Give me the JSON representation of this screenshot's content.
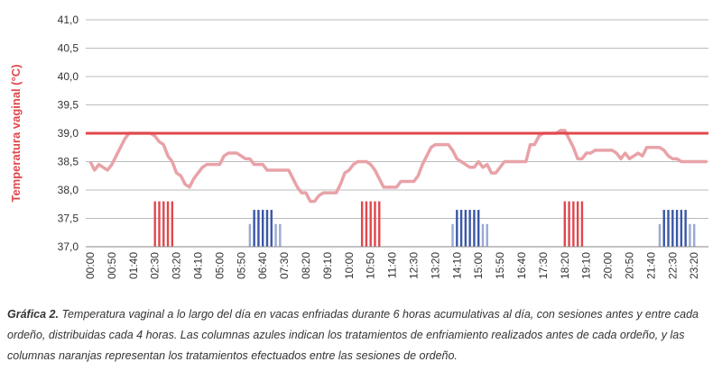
{
  "chart_data": {
    "type": "line",
    "y_label": "Temperatura vaginal (°C)",
    "ylim": [
      37,
      41
    ],
    "yticks": [
      {
        "value": 37,
        "label": "37,0"
      },
      {
        "value": 37.5,
        "label": "37,5"
      },
      {
        "value": 38,
        "label": "38,0"
      },
      {
        "value": 38.5,
        "label": "38,5"
      },
      {
        "value": 39,
        "label": "39,0"
      },
      {
        "value": 39.5,
        "label": "39,5"
      },
      {
        "value": 40,
        "label": "40,0"
      },
      {
        "value": 40.5,
        "label": "40,5"
      },
      {
        "value": 41,
        "label": "41,0"
      }
    ],
    "grid": true,
    "threshold": 39,
    "threshold_color": "#e0474c",
    "categories": [
      "00:00",
      null,
      null,
      null,
      null,
      "00:50",
      null,
      null,
      null,
      null,
      "01:40",
      null,
      null,
      null,
      null,
      "02:30",
      null,
      null,
      null,
      null,
      "03:20",
      null,
      null,
      null,
      null,
      "04:10",
      null,
      null,
      null,
      null,
      "05:00",
      null,
      null,
      null,
      null,
      "05:50",
      null,
      null,
      null,
      null,
      "06:40",
      null,
      null,
      null,
      null,
      "07:30",
      null,
      null,
      null,
      null,
      "08:20",
      null,
      null,
      null,
      null,
      "09:10",
      null,
      null,
      null,
      null,
      "10:00",
      null,
      null,
      null,
      null,
      "10:50",
      null,
      null,
      null,
      null,
      "11:40",
      null,
      null,
      null,
      null,
      "12:30",
      null,
      null,
      null,
      null,
      "13:20",
      null,
      null,
      null,
      null,
      "14:10",
      null,
      null,
      null,
      null,
      "15:00",
      null,
      null,
      null,
      null,
      "15:50",
      null,
      null,
      null,
      null,
      "16:40",
      null,
      null,
      null,
      null,
      "17:30",
      null,
      null,
      null,
      null,
      "18:20",
      null,
      null,
      null,
      null,
      "19:10",
      null,
      null,
      null,
      null,
      "20:00",
      null,
      null,
      null,
      null,
      "20:50",
      null,
      null,
      null,
      null,
      "21:40",
      null,
      null,
      null,
      null,
      "22:30",
      null,
      null,
      null,
      null,
      "23:20",
      null,
      null,
      null
    ],
    "series": [
      {
        "kind": "line",
        "color": "#e8a2a8",
        "values": [
          38.5,
          38.35,
          38.45,
          38.4,
          38.35,
          38.45,
          38.6,
          38.75,
          38.9,
          39.0,
          39.0,
          39.0,
          39.0,
          39.0,
          39.0,
          38.95,
          38.85,
          38.8,
          38.6,
          38.5,
          38.3,
          38.25,
          38.1,
          38.05,
          38.2,
          38.3,
          38.4,
          38.45,
          38.45,
          38.45,
          38.45,
          38.6,
          38.65,
          38.65,
          38.65,
          38.6,
          38.55,
          38.55,
          38.45,
          38.45,
          38.45,
          38.35,
          38.35,
          38.35,
          38.35,
          38.35,
          38.35,
          38.2,
          38.05,
          37.95,
          37.95,
          37.8,
          37.8,
          37.9,
          37.95,
          37.95,
          37.95,
          37.95,
          38.1,
          38.3,
          38.35,
          38.45,
          38.5,
          38.5,
          38.5,
          38.45,
          38.35,
          38.2,
          38.05,
          38.05,
          38.05,
          38.05,
          38.15,
          38.15,
          38.15,
          38.15,
          38.25,
          38.45,
          38.6,
          38.75,
          38.8,
          38.8,
          38.8,
          38.8,
          38.7,
          38.55,
          38.5,
          38.45,
          38.4,
          38.4,
          38.5,
          38.4,
          38.45,
          38.3,
          38.3,
          38.4,
          38.5,
          38.5,
          38.5,
          38.5,
          38.5,
          38.5,
          38.8,
          38.8,
          38.95,
          39.0,
          39.0,
          39.0,
          39.0,
          39.05,
          39.05,
          38.9,
          38.75,
          38.55,
          38.55,
          38.65,
          38.65,
          38.7,
          38.7,
          38.7,
          38.7,
          38.7,
          38.65,
          38.55,
          38.65,
          38.55,
          38.6,
          38.65,
          38.6,
          38.75,
          38.75,
          38.75,
          38.75,
          38.7,
          38.6,
          38.55,
          38.55,
          38.5,
          38.5,
          38.5,
          38.5,
          38.5,
          38.5,
          38.5
        ]
      },
      {
        "kind": "bar",
        "color": "#e0474c",
        "values": [
          null,
          null,
          null,
          null,
          null,
          null,
          null,
          null,
          null,
          null,
          null,
          null,
          null,
          null,
          null,
          37.8,
          37.8,
          37.8,
          37.8,
          37.8,
          null,
          null,
          null,
          null,
          null,
          null,
          null,
          null,
          null,
          null,
          null,
          null,
          null,
          null,
          null,
          null,
          null,
          null,
          null,
          null,
          null,
          null,
          null,
          null,
          null,
          null,
          null,
          null,
          null,
          null,
          null,
          null,
          null,
          null,
          null,
          null,
          null,
          null,
          null,
          null,
          null,
          null,
          null,
          37.8,
          37.8,
          37.8,
          37.8,
          37.8,
          null,
          null,
          null,
          null,
          null,
          null,
          null,
          null,
          null,
          null,
          null,
          null,
          null,
          null,
          null,
          null,
          null,
          null,
          null,
          null,
          null,
          null,
          null,
          null,
          null,
          null,
          null,
          null,
          null,
          null,
          null,
          null,
          null,
          null,
          null,
          null,
          null,
          null,
          null,
          null,
          null,
          null,
          37.8,
          37.8,
          37.8,
          37.8,
          37.8,
          null,
          null,
          null,
          null,
          null,
          null,
          null,
          null,
          null,
          null,
          null,
          null,
          null,
          null,
          null,
          null,
          null,
          null,
          null,
          null,
          null,
          null,
          null,
          null,
          null,
          null,
          null,
          null,
          null
        ]
      },
      {
        "kind": "bar",
        "color": "#3a57a7",
        "values": [
          null,
          null,
          null,
          null,
          null,
          null,
          null,
          null,
          null,
          null,
          null,
          null,
          null,
          null,
          null,
          null,
          null,
          null,
          null,
          null,
          null,
          null,
          null,
          null,
          null,
          null,
          null,
          null,
          null,
          null,
          null,
          null,
          null,
          null,
          null,
          null,
          null,
          null,
          37.65,
          37.65,
          37.65,
          37.65,
          37.65,
          null,
          null,
          null,
          null,
          null,
          null,
          null,
          null,
          null,
          null,
          null,
          null,
          null,
          null,
          null,
          null,
          null,
          null,
          null,
          null,
          null,
          null,
          null,
          null,
          null,
          null,
          null,
          null,
          null,
          null,
          null,
          null,
          null,
          null,
          null,
          null,
          null,
          null,
          null,
          null,
          null,
          null,
          37.65,
          37.65,
          37.65,
          37.65,
          37.65,
          37.65,
          null,
          null,
          null,
          null,
          null,
          null,
          null,
          null,
          null,
          null,
          null,
          null,
          null,
          null,
          null,
          null,
          null,
          null,
          null,
          null,
          null,
          null,
          null,
          null,
          null,
          null,
          null,
          null,
          null,
          null,
          null,
          null,
          null,
          null,
          null,
          null,
          null,
          null,
          null,
          null,
          null,
          null,
          37.65,
          37.65,
          37.65,
          37.65,
          37.65,
          37.65,
          null,
          null,
          null,
          null,
          null
        ]
      },
      {
        "kind": "bar",
        "color": "#9aa9d4",
        "values": [
          null,
          null,
          null,
          null,
          null,
          null,
          null,
          null,
          null,
          null,
          null,
          null,
          null,
          null,
          null,
          null,
          null,
          null,
          null,
          null,
          null,
          null,
          null,
          null,
          null,
          null,
          null,
          null,
          null,
          null,
          null,
          null,
          null,
          null,
          null,
          null,
          null,
          37.4,
          null,
          null,
          null,
          null,
          null,
          37.4,
          37.4,
          null,
          null,
          null,
          null,
          null,
          null,
          null,
          null,
          null,
          null,
          null,
          null,
          null,
          null,
          null,
          null,
          null,
          null,
          null,
          null,
          null,
          null,
          null,
          null,
          null,
          null,
          null,
          null,
          null,
          null,
          null,
          null,
          null,
          null,
          null,
          null,
          null,
          null,
          null,
          37.4,
          null,
          null,
          null,
          null,
          null,
          null,
          37.4,
          37.4,
          null,
          null,
          null,
          null,
          null,
          null,
          null,
          null,
          null,
          null,
          null,
          null,
          null,
          null,
          null,
          null,
          null,
          null,
          null,
          null,
          null,
          null,
          null,
          null,
          null,
          null,
          null,
          null,
          null,
          null,
          null,
          null,
          null,
          null,
          null,
          null,
          null,
          null,
          null,
          37.4,
          null,
          null,
          null,
          null,
          null,
          null,
          37.4,
          37.4,
          null,
          null,
          null
        ]
      }
    ]
  },
  "caption": {
    "label": "Gráfica 2.",
    "text": "Temperatura vaginal a lo largo del día en vacas enfriadas durante 6 horas acumulativas al día, con sesiones antes y entre cada ordeño, distribuidas cada 4 horas. Las columnas azules indican los tratamientos de enfriamiento realizados antes de cada ordeño, y las columnas naranjas representan los tratamientos efectuados entre las sesiones de ordeño."
  }
}
